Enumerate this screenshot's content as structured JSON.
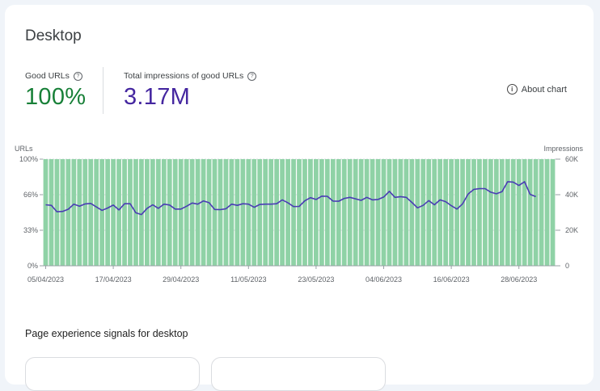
{
  "card": {
    "title": "Desktop",
    "metrics": [
      {
        "label": "Good URLs",
        "value": "100%",
        "color": "#188038"
      },
      {
        "label": "Total impressions of good URLs",
        "value": "3.17M",
        "color": "#4527a0"
      }
    ],
    "about_chart": "About chart",
    "section_title": "Page experience signals for desktop"
  },
  "chart_data": {
    "type": "bar",
    "left_axis_label": "URLs",
    "right_axis_label": "Impressions",
    "left_ticks": [
      "0%",
      "33%",
      "66%",
      "100%"
    ],
    "right_ticks": [
      "0",
      "20K",
      "40K",
      "60K"
    ],
    "ylim_left": [
      0,
      100
    ],
    "ylim_right": [
      0,
      60000
    ],
    "x_ticks": [
      "05/04/2023",
      "17/04/2023",
      "29/04/2023",
      "11/05/2023",
      "23/05/2023",
      "04/06/2023",
      "16/06/2023",
      "28/06/2023"
    ],
    "x_tick_positions": [
      0,
      12,
      24,
      36,
      48,
      60,
      72,
      84
    ],
    "bar_color": "#8fd2a6",
    "line_color": "#4a3cb5",
    "series": [
      {
        "name": "Good URLs",
        "type": "bar",
        "values": [
          100,
          100,
          100,
          100,
          100,
          100,
          100,
          100,
          100,
          100,
          100,
          100,
          100,
          100,
          100,
          100,
          100,
          100,
          100,
          100,
          100,
          100,
          100,
          100,
          100,
          100,
          100,
          100,
          100,
          100,
          100,
          100,
          100,
          100,
          100,
          100,
          100,
          100,
          100,
          100,
          100,
          100,
          100,
          100,
          100,
          100,
          100,
          100,
          100,
          100,
          100,
          100,
          100,
          100,
          100,
          100,
          100,
          100,
          100,
          100,
          100,
          100,
          100,
          100,
          100,
          100,
          100,
          100,
          100,
          100,
          100,
          100,
          100,
          100,
          100,
          100,
          100,
          100,
          100,
          100,
          100,
          100,
          100,
          100,
          100,
          100,
          100,
          100,
          100,
          100,
          100
        ]
      },
      {
        "name": "Total impressions of good URLs",
        "type": "line",
        "values": [
          34300,
          34000,
          30400,
          30600,
          31800,
          34700,
          33500,
          34800,
          35100,
          33100,
          31200,
          32500,
          34200,
          31400,
          34900,
          34900,
          29800,
          28800,
          32300,
          34300,
          32300,
          34700,
          34200,
          31900,
          31900,
          33500,
          35300,
          34700,
          36500,
          35500,
          31700,
          31600,
          32100,
          34700,
          34000,
          34900,
          34700,
          32900,
          34500,
          34700,
          34700,
          34900,
          37100,
          35400,
          33300,
          33400,
          36600,
          38300,
          37300,
          39200,
          39100,
          36400,
          36300,
          37900,
          38500,
          37700,
          36800,
          38500,
          37100,
          37300,
          38700,
          41900,
          38500,
          38900,
          38500,
          35700,
          32600,
          34000,
          36700,
          34300,
          37100,
          36100,
          33800,
          31900,
          34800,
          40400,
          43000,
          43400,
          43400,
          41400,
          40500,
          41700,
          47300,
          47100,
          45200,
          47300,
          40200,
          38900
        ]
      }
    ]
  }
}
